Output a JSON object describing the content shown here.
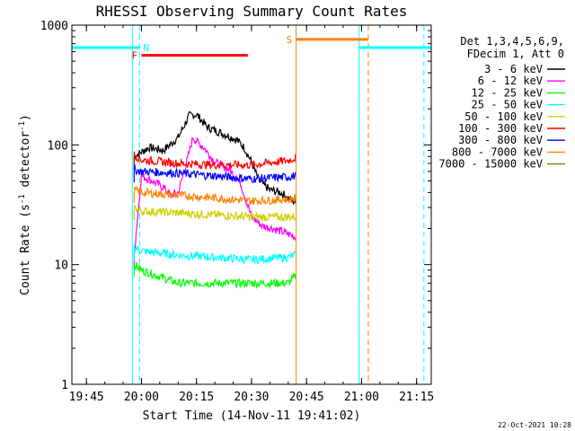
{
  "chart_data": {
    "type": "line",
    "title": "RHESSI Observing Summary Count Rates",
    "xlabel": "Start Time (14-Nov-11 19:41:02)",
    "ylabel_main": "Count Rate (s",
    "ylabel_sup1": "-1",
    "ylabel_mid": " detector",
    "ylabel_sup2": "-1",
    "ylabel_end": ")",
    "yscale": "log",
    "xlim": [
      "19:41:02",
      "21:19:00"
    ],
    "ylim": [
      1,
      1000
    ],
    "x_ticks": [
      "19:45",
      "20:00",
      "20:15",
      "20:30",
      "20:45",
      "21:00",
      "21:15"
    ],
    "y_ticks": [
      "1",
      "10",
      "100",
      "1000"
    ],
    "legend_header": [
      "Det 1,3,4,5,6,9,",
      "FDecim 1, Att 0"
    ],
    "legend_position": "right",
    "footer": "22-Oct-2021 10:28",
    "series": [
      {
        "name": "3 - 6 keV",
        "color": "#000000",
        "x": [
          "19:58",
          "20:02",
          "20:06",
          "20:10",
          "20:13",
          "20:15",
          "20:18",
          "20:22",
          "20:26",
          "20:28",
          "20:30",
          "20:32",
          "20:35",
          "20:38",
          "20:40",
          "20:42"
        ],
        "y": [
          80,
          95,
          90,
          115,
          175,
          180,
          140,
          125,
          110,
          95,
          72,
          50,
          42,
          40,
          36,
          33
        ]
      },
      {
        "name": "6 - 12 keV",
        "color": "#ff00ff",
        "x": [
          "19:58",
          "20:00",
          "20:03",
          "20:06",
          "20:08",
          "20:10",
          "20:12",
          "20:14",
          "20:17",
          "20:20",
          "20:24",
          "20:27",
          "20:30",
          "20:33",
          "20:36",
          "20:40",
          "20:42"
        ],
        "y": [
          12,
          55,
          50,
          44,
          38,
          40,
          65,
          115,
          95,
          72,
          62,
          48,
          25,
          21,
          20,
          18,
          17
        ]
      },
      {
        "name": "12 - 25 keV",
        "color": "#00ff00",
        "x": [
          "19:58",
          "20:00",
          "20:10",
          "20:20",
          "20:30",
          "20:40",
          "20:42"
        ],
        "y": [
          10,
          9,
          7,
          7,
          7,
          7,
          8
        ]
      },
      {
        "name": "25 - 50 keV",
        "color": "#00ffff",
        "x": [
          "19:58",
          "20:00",
          "20:10",
          "20:20",
          "20:30",
          "20:40",
          "20:42"
        ],
        "y": [
          14,
          13,
          12,
          11.5,
          11,
          11.5,
          12
        ]
      },
      {
        "name": "50 - 100 keV",
        "color": "#d0d000",
        "x": [
          "19:58",
          "20:00",
          "20:10",
          "20:20",
          "20:30",
          "20:40",
          "20:42"
        ],
        "y": [
          30,
          28,
          27,
          26,
          25,
          25,
          25
        ]
      },
      {
        "name": "100 - 300 keV",
        "color": "#ff0000",
        "x": [
          "19:58",
          "20:00",
          "20:10",
          "20:20",
          "20:30",
          "20:40",
          "20:42"
        ],
        "y": [
          83,
          75,
          70,
          68,
          68,
          74,
          78
        ]
      },
      {
        "name": "300 - 800 keV",
        "color": "#0000ff",
        "x": [
          "19:58",
          "20:00",
          "20:10",
          "20:20",
          "20:30",
          "20:40",
          "20:42"
        ],
        "y": [
          62,
          60,
          58,
          55,
          52,
          54,
          55
        ]
      },
      {
        "name": "800 - 7000 keV",
        "color": "#ff8000",
        "x": [
          "19:58",
          "20:00",
          "20:10",
          "20:20",
          "20:30",
          "20:40",
          "20:42"
        ],
        "y": [
          42,
          40,
          38,
          36,
          34,
          35,
          36
        ]
      },
      {
        "name": "7000 - 15000 keV",
        "color": "#808000",
        "x": [],
        "y": []
      }
    ],
    "flags": [
      {
        "label": "N",
        "color": "#00ffff",
        "y": 650,
        "segments": [
          [
            "19:41:02",
            "19:59:30"
          ],
          [
            "20:59:20",
            "21:19:00"
          ]
        ]
      },
      {
        "label": "F",
        "color": "#ff0000",
        "y": 560,
        "segments": [
          [
            "20:00",
            "20:29"
          ]
        ]
      },
      {
        "label": "S",
        "color": "#ff8000",
        "y": 760,
        "segments": [
          [
            "20:42:10",
            "21:01:50"
          ]
        ]
      }
    ],
    "vlines": [
      {
        "x": "19:41:02",
        "color": "#00ffff",
        "style": "solid"
      },
      {
        "x": "19:57:30",
        "color": "#00ffff",
        "style": "solid"
      },
      {
        "x": "19:59:30",
        "color": "#00ffff",
        "style": "dashed"
      },
      {
        "x": "20:42:10",
        "color": "#ff8000",
        "style": "solid"
      },
      {
        "x": "20:59:20",
        "color": "#00ffff",
        "style": "solid"
      },
      {
        "x": "21:01:50",
        "color": "#ff8000",
        "style": "dashed"
      },
      {
        "x": "21:17:00",
        "color": "#00ffff",
        "style": "dashed"
      }
    ]
  }
}
